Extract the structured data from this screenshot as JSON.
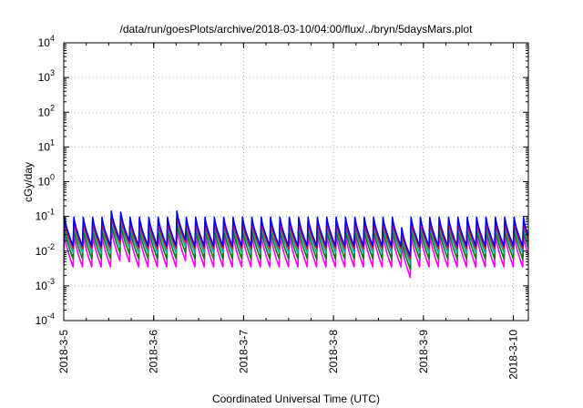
{
  "chart_data": {
    "type": "line",
    "title": "/data/run/goesPlots/archive/2018-03-10/04:00/flux/../bryn/5daysMars.plot",
    "xlabel": "Coordinated Universal Time (UTC)",
    "ylabel": "cGy/day",
    "y_scale": "log",
    "ylim": [
      0.0001,
      10000
    ],
    "y_ticks": [
      {
        "exp": "-4",
        "value": 0.0001
      },
      {
        "exp": "-3",
        "value": 0.001
      },
      {
        "exp": "-2",
        "value": 0.01
      },
      {
        "exp": "-1",
        "value": 0.1
      },
      {
        "exp": "0",
        "value": 1
      },
      {
        "exp": "1",
        "value": 10
      },
      {
        "exp": "2",
        "value": 100
      },
      {
        "exp": "3",
        "value": 1000
      },
      {
        "exp": "4",
        "value": 10000
      }
    ],
    "y_tick_base": "10",
    "xlim": [
      "2018-03-05T00:00",
      "2018-03-10T04:00"
    ],
    "x_ticks": [
      "2018-3-5",
      "2018-3-6",
      "2018-3-7",
      "2018-3-8",
      "2018-3-9",
      "2018-3-10"
    ],
    "grid": true,
    "legend": "none",
    "sawtooth_period_hours": 2.5,
    "series": [
      {
        "color": "#0000ff",
        "peak": 0.095,
        "trough": 0.014
      },
      {
        "color": "#ff0000",
        "peak": 0.072,
        "trough": 0.012
      },
      {
        "color": "#00aaaa",
        "peak": 0.06,
        "trough": 0.009
      },
      {
        "color": "#008000",
        "peak": 0.045,
        "trough": 0.006
      },
      {
        "color": "#ff00ff",
        "peak": 0.03,
        "trough": 0.0035
      }
    ],
    "events": [
      {
        "at": "2018-03-05T13:00",
        "boost": 1.5
      },
      {
        "at": "2018-03-05T15:30",
        "boost": 1.4
      },
      {
        "at": "2018-03-06T07:00",
        "boost": 1.5
      },
      {
        "at": "2018-03-08T17:30",
        "dip": 0.5
      }
    ]
  }
}
